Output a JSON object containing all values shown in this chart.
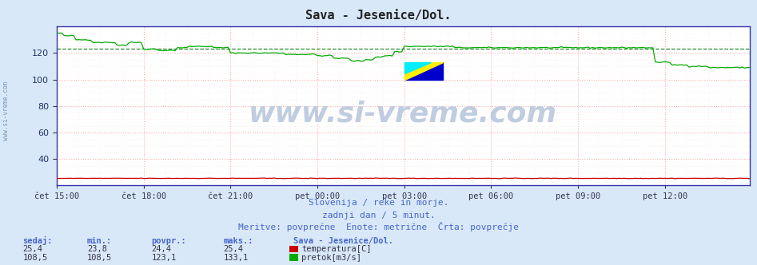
{
  "title": "Sava - Jesenice/Dol.",
  "bg_color": "#d8e8f8",
  "plot_bg_color": "#ffffff",
  "grid_color_major": "#ffaaaa",
  "grid_color_minor": "#ffe8e8",
  "x_labels": [
    "čet 15:00",
    "čet 18:00",
    "čet 21:00",
    "pet 00:00",
    "pet 03:00",
    "pet 06:00",
    "pet 09:00",
    "pet 12:00"
  ],
  "x_ticks": [
    0,
    36,
    72,
    108,
    144,
    180,
    216,
    252
  ],
  "n_points": 288,
  "y_min": 20,
  "y_max": 140,
  "y_ticks": [
    40,
    60,
    80,
    100,
    120
  ],
  "temp_color": "#cc0000",
  "flow_color": "#00aa00",
  "avg_line_color": "#007700",
  "watermark_color": "#c0cde0",
  "subtitle1": "Slovenija / reke in morje.",
  "subtitle2": "zadnji dan / 5 minut.",
  "subtitle3": "Meritve: povprečne  Enote: metrične  Črta: povprečje",
  "label_color": "#4466cc",
  "temp_sedaj": "25,4",
  "temp_min": "23,8",
  "temp_povpr": "24,4",
  "temp_maks": "25,4",
  "flow_sedaj": "108,5",
  "flow_min": "108,5",
  "flow_povpr": "123,1",
  "flow_maks": "133,1",
  "station": "Sava - Jesenice/Dol.",
  "left_watermark": "www.si-vreme.com",
  "left_wm_color": "#7799bb"
}
